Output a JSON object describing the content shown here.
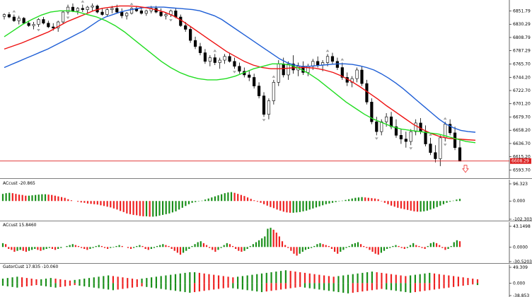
{
  "chart_data": [
    {
      "type": "candlestick",
      "panel": "price",
      "y_ticks": [
        "6851.79",
        "6830.29",
        "6808.79",
        "6787.29",
        "6765.70",
        "6744.20",
        "6722.70",
        "6701.20",
        "6679.70",
        "6658.20",
        "6636.70",
        "6615.20",
        "6593.70"
      ],
      "ylim": [
        6585,
        6865
      ],
      "current_price_label": "6608.29",
      "current_price": 6608.29,
      "candles": [
        [
          6843,
          6848,
          6838,
          6846
        ],
        [
          6846,
          6850,
          6840,
          6842
        ],
        [
          6842,
          6846,
          6834,
          6836
        ],
        [
          6836,
          6844,
          6830,
          6840
        ],
        [
          6840,
          6842,
          6830,
          6832
        ],
        [
          6832,
          6836,
          6826,
          6828
        ],
        [
          6828,
          6834,
          6822,
          6830
        ],
        [
          6830,
          6840,
          6826,
          6838
        ],
        [
          6838,
          6842,
          6830,
          6832
        ],
        [
          6832,
          6836,
          6824,
          6826
        ],
        [
          6826,
          6832,
          6820,
          6824
        ],
        [
          6824,
          6836,
          6818,
          6834
        ],
        [
          6834,
          6852,
          6830,
          6850
        ],
        [
          6850,
          6862,
          6846,
          6858
        ],
        [
          6858,
          6864,
          6850,
          6852
        ],
        [
          6852,
          6858,
          6846,
          6856
        ],
        [
          6856,
          6862,
          6850,
          6854
        ],
        [
          6854,
          6860,
          6848,
          6858
        ],
        [
          6858,
          6864,
          6852,
          6860
        ],
        [
          6860,
          6862,
          6848,
          6850
        ],
        [
          6850,
          6856,
          6844,
          6846
        ],
        [
          6846,
          6856,
          6842,
          6854
        ],
        [
          6854,
          6860,
          6848,
          6856
        ],
        [
          6856,
          6862,
          6848,
          6850
        ],
        [
          6850,
          6856,
          6840,
          6844
        ],
        [
          6844,
          6850,
          6838,
          6848
        ],
        [
          6848,
          6858,
          6846,
          6856
        ],
        [
          6856,
          6860,
          6850,
          6852
        ],
        [
          6852,
          6858,
          6846,
          6848
        ],
        [
          6848,
          6854,
          6844,
          6852
        ],
        [
          6852,
          6860,
          6848,
          6856
        ],
        [
          6856,
          6860,
          6848,
          6850
        ],
        [
          6850,
          6856,
          6842,
          6844
        ],
        [
          6844,
          6850,
          6838,
          6846
        ],
        [
          6846,
          6854,
          6842,
          6852
        ],
        [
          6852,
          6856,
          6840,
          6842
        ],
        [
          6842,
          6846,
          6826,
          6828
        ],
        [
          6828,
          6834,
          6818,
          6822
        ],
        [
          6822,
          6826,
          6800,
          6804
        ],
        [
          6804,
          6810,
          6790,
          6794
        ],
        [
          6794,
          6800,
          6780,
          6784
        ],
        [
          6784,
          6790,
          6766,
          6770
        ],
        [
          6770,
          6780,
          6762,
          6776
        ],
        [
          6776,
          6782,
          6764,
          6768
        ],
        [
          6768,
          6776,
          6758,
          6772
        ],
        [
          6772,
          6782,
          6766,
          6778
        ],
        [
          6778,
          6784,
          6768,
          6770
        ],
        [
          6770,
          6776,
          6758,
          6762
        ],
        [
          6762,
          6768,
          6750,
          6754
        ],
        [
          6754,
          6760,
          6744,
          6748
        ],
        [
          6748,
          6756,
          6738,
          6744
        ],
        [
          6744,
          6750,
          6726,
          6730
        ],
        [
          6730,
          6736,
          6710,
          6714
        ],
        [
          6714,
          6720,
          6680,
          6684
        ],
        [
          6684,
          6710,
          6676,
          6706
        ],
        [
          6706,
          6740,
          6700,
          6736
        ],
        [
          6736,
          6772,
          6730,
          6766
        ],
        [
          6766,
          6776,
          6744,
          6748
        ],
        [
          6748,
          6770,
          6740,
          6766
        ],
        [
          6766,
          6780,
          6750,
          6756
        ],
        [
          6756,
          6768,
          6746,
          6762
        ],
        [
          6762,
          6770,
          6748,
          6752
        ],
        [
          6752,
          6766,
          6746,
          6762
        ],
        [
          6762,
          6774,
          6756,
          6770
        ],
        [
          6770,
          6778,
          6760,
          6764
        ],
        [
          6764,
          6772,
          6754,
          6768
        ],
        [
          6768,
          6782,
          6762,
          6778
        ],
        [
          6778,
          6784,
          6766,
          6770
        ],
        [
          6770,
          6776,
          6756,
          6760
        ],
        [
          6760,
          6768,
          6740,
          6744
        ],
        [
          6744,
          6752,
          6730,
          6736
        ],
        [
          6736,
          6746,
          6728,
          6742
        ],
        [
          6742,
          6760,
          6736,
          6756
        ],
        [
          6756,
          6762,
          6730,
          6734
        ],
        [
          6734,
          6740,
          6700,
          6704
        ],
        [
          6704,
          6710,
          6668,
          6672
        ],
        [
          6672,
          6680,
          6650,
          6656
        ],
        [
          6656,
          6676,
          6650,
          6672
        ],
        [
          6672,
          6686,
          6664,
          6680
        ],
        [
          6680,
          6688,
          6660,
          6664
        ],
        [
          6664,
          6676,
          6646,
          6650
        ],
        [
          6650,
          6660,
          6636,
          6644
        ],
        [
          6644,
          6656,
          6630,
          6640
        ],
        [
          6640,
          6660,
          6634,
          6656
        ],
        [
          6656,
          6676,
          6650,
          6670
        ],
        [
          6670,
          6678,
          6652,
          6656
        ],
        [
          6656,
          6666,
          6632,
          6636
        ],
        [
          6636,
          6646,
          6618,
          6622
        ],
        [
          6622,
          6634,
          6606,
          6612
        ],
        [
          6612,
          6650,
          6600,
          6646
        ],
        [
          6646,
          6672,
          6640,
          6668
        ],
        [
          6668,
          6676,
          6650,
          6654
        ],
        [
          6654,
          6664,
          6626,
          6630
        ],
        [
          6630,
          6642,
          6610,
          6608
        ]
      ],
      "fractals_up_idx": [
        2,
        16,
        26,
        43,
        55,
        66,
        69,
        87,
        90
      ],
      "fractals_down_idx": [
        7,
        13,
        34,
        47,
        53,
        76,
        83,
        90
      ],
      "alligator": {
        "jaw_blue": [
          6760,
          6765,
          6770,
          6775,
          6780,
          6785,
          6790,
          6796,
          6802,
          6808,
          6814,
          6820,
          6828,
          6836,
          6842,
          6846,
          6850,
          6853,
          6855,
          6857,
          6858,
          6858,
          6858,
          6857,
          6856,
          6855,
          6854,
          6852,
          6848,
          6844,
          6838,
          6830,
          6822,
          6814,
          6806,
          6798,
          6790,
          6782,
          6774,
          6768,
          6764,
          6762,
          6762,
          6763,
          6764,
          6765,
          6766,
          6766,
          6765,
          6763,
          6760,
          6756,
          6750,
          6743,
          6735,
          6726,
          6716,
          6706,
          6696,
          6686,
          6676,
          6668,
          6662,
          6658,
          6656,
          6655
        ],
        "teeth_red": [
          6790,
          6795,
          6800,
          6806,
          6812,
          6818,
          6826,
          6834,
          6840,
          6846,
          6852,
          6856,
          6858,
          6860,
          6860,
          6859,
          6857,
          6854,
          6850,
          6844,
          6836,
          6826,
          6816,
          6806,
          6796,
          6786,
          6778,
          6770,
          6764,
          6760,
          6758,
          6758,
          6759,
          6760,
          6760,
          6759,
          6756,
          6752,
          6746,
          6738,
          6729,
          6719,
          6709,
          6698,
          6688,
          6678,
          6668,
          6660,
          6653,
          6648,
          6645,
          6644,
          6643,
          6642
        ],
        "lips_green": [
          6810,
          6820,
          6830,
          6838,
          6845,
          6850,
          6852,
          6852,
          6850,
          6846,
          6842,
          6836,
          6828,
          6818,
          6806,
          6794,
          6782,
          6770,
          6760,
          6752,
          6746,
          6742,
          6740,
          6740,
          6742,
          6746,
          6752,
          6758,
          6762,
          6766,
          6766,
          6764,
          6758,
          6750,
          6740,
          6728,
          6716,
          6704,
          6694,
          6684,
          6676,
          6670,
          6664,
          6660,
          6658,
          6656,
          6654,
          6652,
          6648,
          6644,
          6640,
          6638
        ]
      },
      "signal_arrow": "down"
    },
    {
      "type": "histogram",
      "panel": "indicator-1",
      "label": "ACcust -20.865",
      "y_ticks": [
        "96.323",
        "0.000",
        "-102.303"
      ],
      "ylim": [
        -102.303,
        96.323
      ],
      "values": [
        40,
        44,
        46,
        44,
        40,
        36,
        34,
        30,
        30,
        32,
        34,
        36,
        38,
        38,
        36,
        34,
        30,
        26,
        22,
        18,
        10,
        4,
        0,
        -4,
        -8,
        -10,
        -14,
        -16,
        -18,
        -20,
        -24,
        -28,
        -32,
        -36,
        -42,
        -48,
        -56,
        -62,
        -70,
        -74,
        -78,
        -80,
        -84,
        -86,
        -86,
        -88,
        -88,
        -86,
        -82,
        -78,
        -74,
        -70,
        -64,
        -58,
        -48,
        -38,
        -28,
        -18,
        -10,
        -6,
        -2,
        2,
        8,
        14,
        20,
        26,
        32,
        38,
        44,
        48,
        50,
        46,
        40,
        34,
        28,
        20,
        12,
        4,
        -4,
        -10,
        -18,
        -26,
        -34,
        -40,
        -48,
        -54,
        -60,
        -64,
        -66,
        -66,
        -64,
        -62,
        -58,
        -54,
        -48,
        -42,
        -36,
        -30,
        -24,
        -18,
        -14,
        -10,
        -6,
        -2,
        2,
        6,
        10,
        14,
        18,
        20,
        22,
        20,
        18,
        16,
        14,
        10,
        -2,
        -10,
        -18,
        -26,
        -32,
        -38,
        -42,
        -46,
        -50,
        -54,
        -58,
        -60,
        -60,
        -58,
        -54,
        -48,
        -42,
        -34,
        -26,
        -18,
        -10,
        -4,
        2,
        8,
        12
      ]
    },
    {
      "type": "histogram",
      "panel": "indicator-2",
      "label": "ACcust 15.8460",
      "y_ticks": [
        "43.1498",
        "0.0000",
        "-30.5203"
      ],
      "ylim": [
        -30.5203,
        43.1498
      ],
      "values": [
        8,
        6,
        -4,
        -6,
        -10,
        -8,
        -6,
        -8,
        -10,
        -8,
        -6,
        -4,
        -6,
        -8,
        -6,
        -4,
        -2,
        -4,
        -6,
        -4,
        -2,
        0,
        2,
        4,
        6,
        4,
        2,
        -2,
        -4,
        -6,
        -4,
        -2,
        2,
        4,
        2,
        -2,
        -4,
        -2,
        -1,
        2,
        4,
        2,
        0,
        -2,
        -4,
        -2,
        2,
        4,
        2,
        -4,
        -6,
        -4,
        -2,
        2,
        4,
        6,
        4,
        2,
        -4,
        -8,
        -12,
        -16,
        -12,
        -8,
        -4,
        2,
        6,
        10,
        12,
        8,
        4,
        -2,
        -6,
        -10,
        -6,
        -2,
        4,
        8,
        6,
        2,
        -4,
        -8,
        -10,
        -8,
        -4,
        2,
        6,
        10,
        14,
        18,
        22,
        38,
        40,
        36,
        30,
        22,
        12,
        4,
        -2,
        -8,
        -14,
        -18,
        -14,
        -10,
        -6,
        -4,
        -2,
        2,
        6,
        8,
        6,
        4,
        2,
        -4,
        -10,
        -14,
        -10,
        -6,
        -2,
        2,
        6,
        8,
        10,
        6,
        2,
        -2,
        -6,
        -10,
        -14,
        -16,
        -12,
        -8,
        -4,
        -2,
        2,
        4,
        2,
        -2,
        -4,
        -2,
        4,
        8,
        4,
        2,
        -2,
        -4,
        2,
        8,
        10,
        8,
        4,
        -2,
        -6,
        -4,
        2,
        10,
        14,
        12
      ]
    },
    {
      "type": "histogram",
      "panel": "indicator-3",
      "label": "GatorCust 17.835 -10.060",
      "y_ticks": [
        "49.309",
        "0.000",
        "-38.853"
      ],
      "ylim": [
        -38.853,
        49.309
      ],
      "upper": [
        14,
        16,
        18,
        20,
        18,
        16,
        14,
        12,
        12,
        14,
        16,
        14,
        12,
        10,
        8,
        10,
        12,
        14,
        16,
        18,
        20,
        22,
        24,
        22,
        20,
        18,
        16,
        14,
        12,
        14,
        16,
        18,
        20,
        22,
        24,
        26,
        28,
        30,
        32,
        34,
        34,
        32,
        30,
        28,
        26,
        24,
        22,
        20,
        18,
        20,
        22,
        24,
        26,
        28,
        30,
        32,
        34,
        36,
        38,
        40,
        38,
        36,
        34,
        32,
        30,
        28,
        26,
        24,
        22,
        20,
        22,
        24,
        26,
        28,
        30,
        32,
        34,
        36,
        34,
        32,
        30,
        28,
        26,
        24,
        22,
        24,
        26,
        28,
        30,
        32,
        30,
        28,
        26,
        24,
        22,
        20,
        18,
        16,
        14,
        12
      ],
      "lower": [
        -8,
        -10,
        -12,
        -14,
        -12,
        -10,
        -8,
        -6,
        -8,
        -10,
        -12,
        -14,
        -12,
        -10,
        -8,
        -6,
        -8,
        -10,
        -12,
        -14,
        -16,
        -18,
        -20,
        -22,
        -20,
        -18,
        -16,
        -14,
        -12,
        -10,
        -12,
        -14,
        -16,
        -18,
        -20,
        -22,
        -24,
        -26,
        -28,
        -30,
        -28,
        -26,
        -24,
        -22,
        -20,
        -18,
        -16,
        -14,
        -16,
        -18,
        -20,
        -22,
        -24,
        -26,
        -28,
        -26,
        -24,
        -22,
        -20,
        -18,
        -16,
        -14,
        -12,
        -14,
        -16,
        -18,
        -20,
        -22,
        -24,
        -26,
        -28,
        -30,
        -32,
        -30,
        -28,
        -26,
        -24,
        -22,
        -20,
        -18,
        -20,
        -22,
        -24,
        -26,
        -28,
        -30,
        -28,
        -26,
        -24,
        -22,
        -20,
        -18,
        -16,
        -14,
        -12,
        -10,
        -8,
        -6,
        -4,
        -6
      ]
    }
  ]
}
